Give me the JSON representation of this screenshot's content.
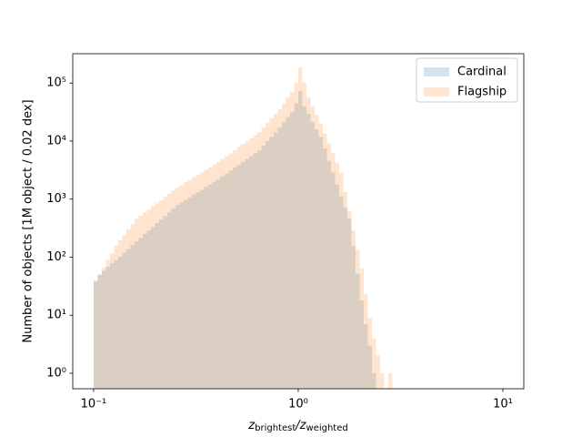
{
  "chart_data": {
    "type": "histogram",
    "xlabel": "z_{brightest}/z_{weighted}",
    "ylabel": "Number of objects [1M object / 0.02 dex]",
    "xscale": "log",
    "yscale": "log",
    "xlim": [
      0.0791,
      12.65
    ],
    "ylim": [
      0.54,
      320000
    ],
    "xticks": [
      {
        "value": 0.1,
        "label": "10⁻¹"
      },
      {
        "value": 1,
        "label": "10⁰"
      },
      {
        "value": 10,
        "label": "10¹"
      }
    ],
    "yticks": [
      {
        "value": 1,
        "label": "10⁰"
      },
      {
        "value": 10,
        "label": "10¹"
      },
      {
        "value": 100,
        "label": "10²"
      },
      {
        "value": 1000,
        "label": "10³"
      },
      {
        "value": 10000,
        "label": "10⁴"
      },
      {
        "value": 100000,
        "label": "10⁵"
      }
    ],
    "legend": "upper right",
    "alpha": 0.2,
    "bins": [
      0.1,
      0.10471,
      0.10965,
      0.11482,
      0.12023,
      0.12589,
      0.13183,
      0.13804,
      0.14454,
      0.15136,
      0.15849,
      0.16596,
      0.17378,
      0.18197,
      0.19055,
      0.19953,
      0.20893,
      0.21878,
      0.22909,
      0.23988,
      0.25119,
      0.26303,
      0.27542,
      0.2884,
      0.302,
      0.31623,
      0.33113,
      0.34674,
      0.36308,
      0.38019,
      0.39811,
      0.41687,
      0.43652,
      0.45709,
      0.47863,
      0.50119,
      0.52481,
      0.54954,
      0.57544,
      0.60256,
      0.63096,
      0.66069,
      0.69183,
      0.72444,
      0.75858,
      0.79433,
      0.83176,
      0.87096,
      0.91201,
      0.95499,
      1,
      1.0471,
      1.0965,
      1.1482,
      1.2023,
      1.2589,
      1.3183,
      1.3804,
      1.4454,
      1.5136,
      1.5849,
      1.6596,
      1.7378,
      1.8197,
      1.9055,
      1.9953,
      2.0893,
      2.1878,
      2.2909,
      2.3988,
      2.5119,
      2.6303,
      2.7542,
      2.884,
      3.02
    ],
    "series": [
      {
        "name": "Cardinal",
        "color": "#1f77b4",
        "values": [
          40,
          50,
          58,
          68,
          78,
          89,
          102,
          120,
          138,
          162,
          186,
          214,
          251,
          288,
          331,
          389,
          447,
          513,
          589,
          692,
          794,
          871,
          977,
          1072,
          1202,
          1318,
          1445,
          1622,
          1778,
          1995,
          2188,
          2455,
          2754,
          3090,
          3467,
          3890,
          4365,
          4898,
          5495,
          6166,
          6918,
          8318,
          10000,
          11750,
          14130,
          16980,
          20890,
          25700,
          31620,
          44670,
          72440,
          39810,
          29510,
          21380,
          15850,
          11750,
          7413,
          4571,
          2884,
          1778,
          1122,
          708,
          457,
          155,
          52,
          18,
          7,
          3,
          1,
          0,
          0,
          0,
          0,
          0
        ]
      },
      {
        "name": "Flagship",
        "color": "#ff7f0e",
        "values": [
          37,
          50,
          66,
          89,
          117,
          158,
          195,
          240,
          302,
          372,
          457,
          513,
          589,
          661,
          759,
          851,
          955,
          1096,
          1230,
          1413,
          1585,
          1738,
          1950,
          2138,
          2399,
          2630,
          2884,
          3236,
          3548,
          3981,
          4365,
          4898,
          5495,
          6166,
          6918,
          7943,
          8913,
          10000,
          11220,
          12590,
          14130,
          16980,
          20420,
          24550,
          29510,
          35480,
          44670,
          56230,
          70790,
          100000,
          186200,
          100000,
          56230,
          39810,
          28180,
          19950,
          13490,
          9120,
          6166,
          4169,
          2818,
          1318,
          617,
          288,
          135,
          63,
          23,
          9,
          4,
          2,
          1,
          0,
          1,
          0
        ]
      }
    ]
  }
}
